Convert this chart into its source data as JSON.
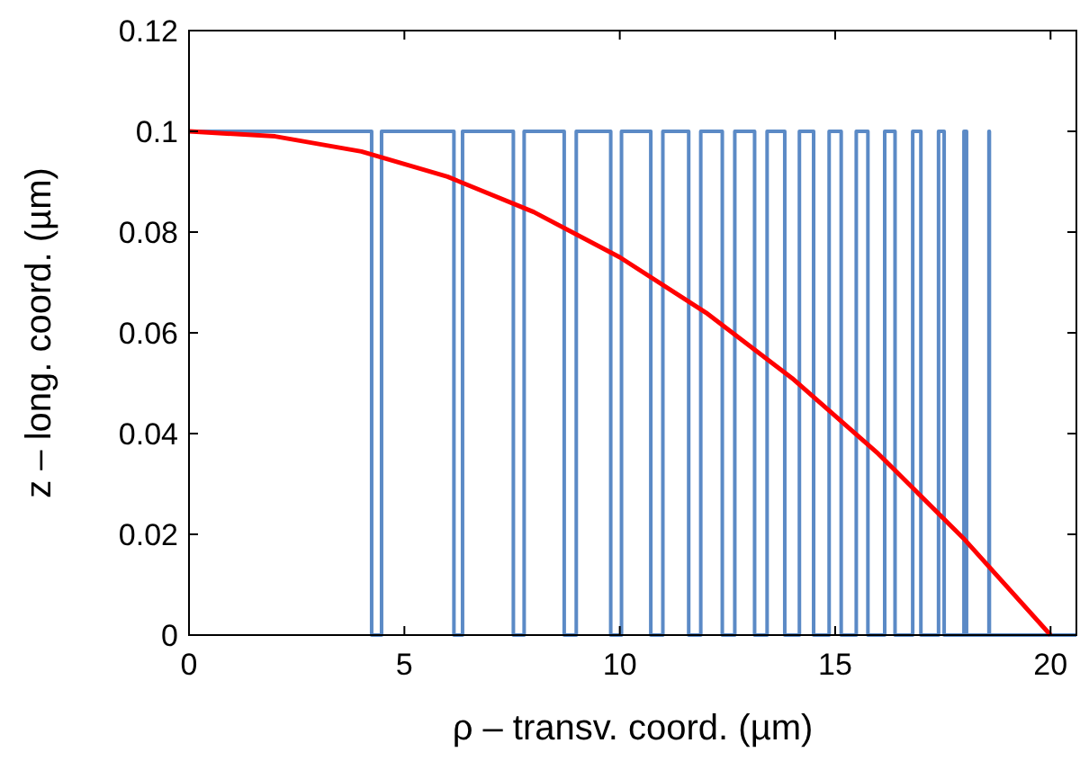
{
  "chart_data": {
    "type": "line",
    "xlabel": "ρ – transv. coord. (µm)",
    "ylabel": "z – long. coord. (µm)",
    "xlim": [
      0,
      20.6
    ],
    "ylim": [
      0,
      0.12
    ],
    "xticks": [
      0,
      5,
      10,
      15,
      20
    ],
    "yticks": [
      0,
      {
        "value": 0.02,
        "label": "0.02"
      },
      {
        "value": 0.04,
        "label": "0.04"
      },
      {
        "value": 0.06,
        "label": "0.06"
      },
      {
        "value": 0.08,
        "label": "0.08"
      },
      {
        "value": 0.1,
        "label": "0.1"
      },
      {
        "value": 0.12,
        "label": "0.12"
      }
    ],
    "grid": false,
    "marker": "none",
    "line_style": "solid",
    "series": [
      {
        "color": "#5b8ac6",
        "x": [
          0,
          4.24,
          4.24,
          4.47,
          4.47,
          6.15,
          6.15,
          6.35,
          6.35,
          7.53,
          7.53,
          7.78,
          7.78,
          8.71,
          8.71,
          8.99,
          8.99,
          9.79,
          9.79,
          10.04,
          10.04,
          10.72,
          10.72,
          11.0,
          11.0,
          11.6,
          11.6,
          11.88,
          11.88,
          12.38,
          12.38,
          12.67,
          12.67,
          13.13,
          13.13,
          13.42,
          13.42,
          13.83,
          13.83,
          14.17,
          14.17,
          14.5,
          14.5,
          14.86,
          14.86,
          15.14,
          15.14,
          15.49,
          15.49,
          15.76,
          15.76,
          16.15,
          16.15,
          16.39,
          16.39,
          16.8,
          16.8,
          16.99,
          16.99,
          17.4,
          17.4,
          17.53,
          17.53,
          17.99,
          17.99,
          18.05,
          18.05,
          18.57,
          18.57,
          18.58,
          18.58,
          19.07,
          19.07,
          20.6
        ],
        "values": [
          0.1,
          0.1,
          0,
          0,
          0.1,
          0.1,
          0,
          0,
          0.1,
          0.1,
          0,
          0,
          0.1,
          0.1,
          0,
          0,
          0.1,
          0.1,
          0,
          0,
          0.1,
          0.1,
          0,
          0,
          0.1,
          0.1,
          0,
          0,
          0.1,
          0.1,
          0,
          0,
          0.1,
          0.1,
          0,
          0,
          0.1,
          0.1,
          0,
          0,
          0.1,
          0.1,
          0,
          0,
          0.1,
          0.1,
          0,
          0,
          0.1,
          0.1,
          0,
          0,
          0.1,
          0.1,
          0,
          0,
          0.1,
          0.1,
          0,
          0,
          0.1,
          0.1,
          0,
          0,
          0.1,
          0.1,
          0,
          0,
          0.1,
          0.1,
          0,
          0,
          0,
          0
        ]
      },
      {
        "color": "#ff0000",
        "x": [
          0,
          2,
          4,
          6,
          8,
          10,
          12,
          14,
          16,
          18,
          20
        ],
        "values": [
          0.1,
          0.099,
          0.096,
          0.091,
          0.084,
          0.075,
          0.064,
          0.051,
          0.036,
          0.019,
          0
        ]
      }
    ]
  }
}
